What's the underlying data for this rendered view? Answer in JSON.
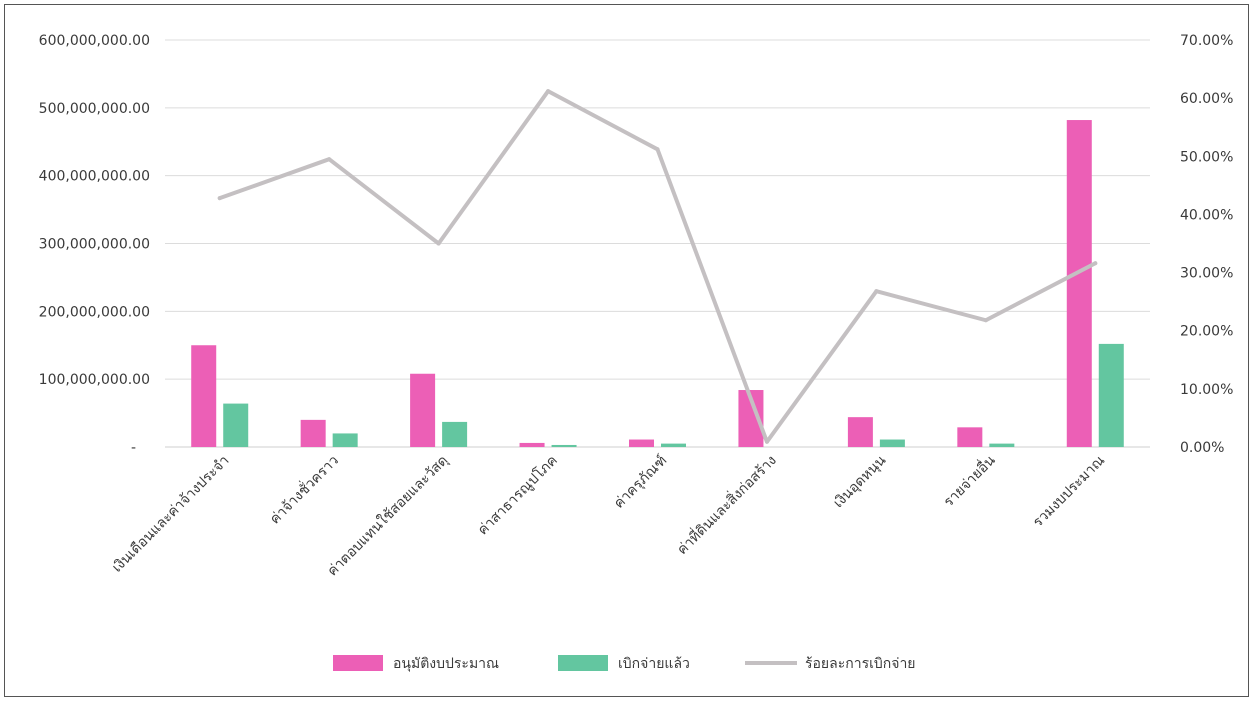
{
  "chart_data": {
    "type": "bar",
    "categories": [
      "เงินเดือนและค่าจ้างประจำ",
      "ค่าจ้างชั่วคราว",
      "ค่าตอบแทนใช้สอยและวัสดุ",
      "ค่าสาธารณูปโภค",
      "ค่าครุภัณฑ์",
      "ค่าที่ดินและสิ่งก่อสร้าง",
      "เงินอุดหนุน",
      "รายจ่ายอื่น",
      "รวมงบประมาณ"
    ],
    "series": [
      {
        "name": "อนุมัติงบประมาณ",
        "type": "bar",
        "axis": "left",
        "color": "#ec5fb6",
        "values": [
          150000000,
          40000000,
          108000000,
          6000000,
          11000000,
          84000000,
          44000000,
          29000000,
          482000000
        ]
      },
      {
        "name": "เบิกจ่ายแล้ว",
        "type": "bar",
        "axis": "left",
        "color": "#63c6a0",
        "values": [
          64000000,
          20000000,
          37000000,
          3000000,
          5000000,
          0,
          11000000,
          5000000,
          152000000
        ]
      },
      {
        "name": "ร้อยละการเบิกจ่าย",
        "type": "line",
        "axis": "right",
        "color": "#c4c0c2",
        "values": [
          42.8,
          49.5,
          35.0,
          61.2,
          51.2,
          0.9,
          26.8,
          21.8,
          31.6
        ]
      }
    ],
    "y_left": {
      "min": 0,
      "max": 600000000,
      "tick_labels": [
        "-",
        "100,000,000.00",
        "200,000,000.00",
        "300,000,000.00",
        "400,000,000.00",
        "500,000,000.00",
        "600,000,000.00"
      ]
    },
    "y_right": {
      "min": 0,
      "max": 70,
      "tick_labels": [
        "0.00%",
        "10.00%",
        "20.00%",
        "30.00%",
        "40.00%",
        "50.00%",
        "60.00%",
        "70.00%"
      ]
    },
    "grid": true,
    "legend_position": "bottom"
  }
}
